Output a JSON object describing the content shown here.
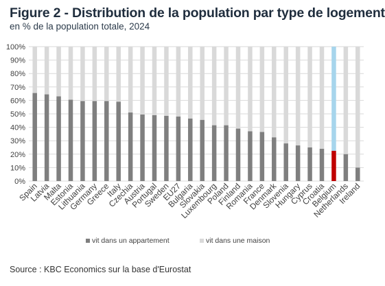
{
  "header": {
    "title": "Figure 2 - Distribution de la population par type de logement",
    "subtitle": "en  % de la population totale, 2024"
  },
  "footer": {
    "source": "Source : KBC Economics sur la base d'Eurostat"
  },
  "colors": {
    "apartment": "#7f7f7f",
    "house": "#d9d9d9",
    "belgium_apartment": "#c00000",
    "belgium_house": "#a6d5ec",
    "grid": "#d9d9d9",
    "axis_text": "#404040"
  },
  "chart_data": {
    "type": "bar",
    "stacked": true,
    "categories": [
      "Spain",
      "Latvia",
      "Malta",
      "Estonia",
      "Lithuania",
      "Germany",
      "Greece",
      "Italy",
      "Czechia",
      "Austria",
      "Portugal",
      "Sweden",
      "EU27",
      "Bulgaria",
      "Slovakia",
      "Luxembourg",
      "Poland",
      "Finland",
      "Romania",
      "France",
      "Denmark",
      "Slovenia",
      "Hungary",
      "Cyprus",
      "Croatia",
      "Belgium",
      "Netherlands",
      "Ireland"
    ],
    "series": [
      {
        "name": "vit dans un appartement",
        "values": [
          65.5,
          64.5,
          63,
          60.5,
          59.5,
          59.5,
          59.5,
          59,
          51,
          49.5,
          49,
          48.5,
          48,
          46.5,
          45.5,
          41.5,
          41.5,
          39,
          37,
          36.5,
          32.5,
          28,
          26.5,
          25,
          24,
          22.5,
          20,
          10
        ]
      },
      {
        "name": "vit dans une maison",
        "values": [
          34.5,
          35.5,
          37,
          39.5,
          40.5,
          40.5,
          40.5,
          41,
          49,
          50.5,
          51,
          51.5,
          52,
          53.5,
          54.5,
          58.5,
          58.5,
          61,
          63,
          63.5,
          67.5,
          72,
          73.5,
          75,
          76,
          77.5,
          80,
          90
        ]
      }
    ],
    "highlight_category": "Belgium",
    "ylim": [
      0,
      100
    ],
    "yticks": [
      "0%",
      "10%",
      "20%",
      "30%",
      "40%",
      "50%",
      "60%",
      "70%",
      "80%",
      "90%",
      "100%"
    ],
    "grid": true,
    "legend_position": "bottom"
  }
}
